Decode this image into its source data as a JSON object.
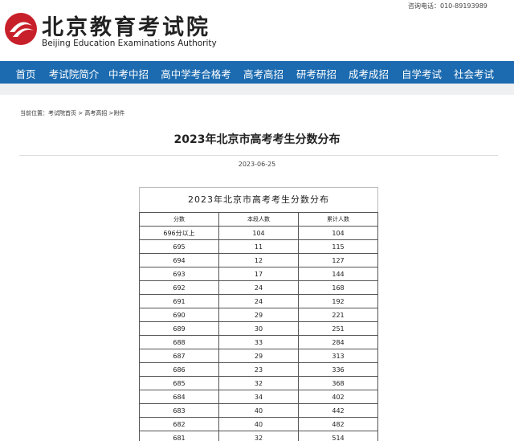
{
  "header": {
    "phone": "咨询电话：010-89193989",
    "logo_cn": "北京教育考试院",
    "logo_en": "Beijing Education Examinations Authority"
  },
  "nav": {
    "items": [
      "首页",
      "考试院简介",
      "中考中招",
      "高中学考合格考",
      "高考高招",
      "研考研招",
      "成考成招",
      "自学考试",
      "社会考试"
    ],
    "active": "高考高招"
  },
  "breadcrumb": "当前位置：考试院首页 > 高考高招 >附件",
  "article": {
    "title": "2023年北京市高考考生分数分布",
    "date": "2023-06-25"
  },
  "table": {
    "caption": "2023年北京市高考考生分数分布",
    "header": [
      "分数",
      "本段人数",
      "累计人数"
    ],
    "rows": [
      [
        "696分以上",
        "104",
        "104"
      ],
      [
        "695",
        "11",
        "115"
      ],
      [
        "694",
        "12",
        "127"
      ],
      [
        "693",
        "17",
        "144"
      ],
      [
        "692",
        "24",
        "168"
      ],
      [
        "691",
        "24",
        "192"
      ],
      [
        "690",
        "29",
        "221"
      ],
      [
        "689",
        "30",
        "251"
      ],
      [
        "688",
        "33",
        "284"
      ],
      [
        "687",
        "29",
        "313"
      ],
      [
        "686",
        "23",
        "336"
      ],
      [
        "685",
        "32",
        "368"
      ],
      [
        "684",
        "34",
        "402"
      ],
      [
        "683",
        "40",
        "442"
      ],
      [
        "682",
        "40",
        "482"
      ],
      [
        "681",
        "32",
        "514"
      ]
    ]
  }
}
